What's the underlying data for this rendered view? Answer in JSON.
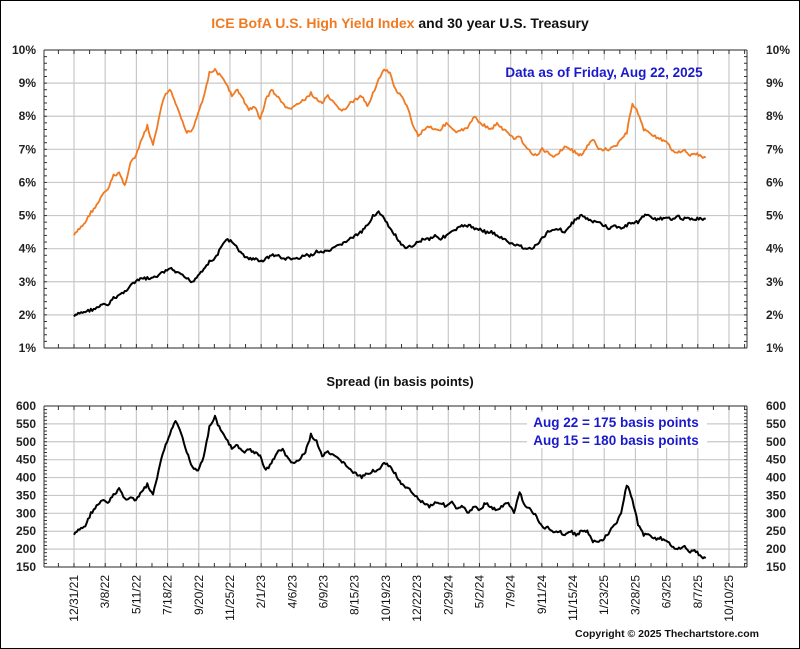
{
  "chart_data": [
    {
      "type": "line",
      "title_parts": [
        {
          "text": "ICE BofA U.S. High Yield Index",
          "color": "#f07a22"
        },
        {
          "text": " and 30 year U.S. Treasury",
          "color": "#111111"
        }
      ],
      "annotation": "Data as of Friday, Aug 22, 2025",
      "annotation_color": "#1a1acc",
      "ylabel": "",
      "ylim": [
        1,
        10
      ],
      "y_ticks": [
        "1%",
        "2%",
        "3%",
        "4%",
        "5%",
        "6%",
        "7%",
        "8%",
        "9%",
        "10%"
      ],
      "y_axis": "both",
      "grid": true,
      "series": [
        {
          "name": "ICE BofA U.S. High Yield Index",
          "color": "#f07a22",
          "x_start": "2021-12-31",
          "step_days": 14,
          "values": [
            4.4,
            4.6,
            4.8,
            5.1,
            5.3,
            5.6,
            5.8,
            6.2,
            6.3,
            5.9,
            6.6,
            6.8,
            7.3,
            7.7,
            7.1,
            7.9,
            8.6,
            8.8,
            8.4,
            7.9,
            7.5,
            7.6,
            8.1,
            8.6,
            9.3,
            9.4,
            9.2,
            9.0,
            8.6,
            8.8,
            8.5,
            8.2,
            8.3,
            7.9,
            8.5,
            8.8,
            8.6,
            8.4,
            8.2,
            8.3,
            8.4,
            8.5,
            8.7,
            8.5,
            8.4,
            8.6,
            8.4,
            8.2,
            8.2,
            8.4,
            8.5,
            8.6,
            8.3,
            8.7,
            9.1,
            9.4,
            9.3,
            8.8,
            8.6,
            8.3,
            7.8,
            7.4,
            7.6,
            7.7,
            7.6,
            7.6,
            7.8,
            7.6,
            7.5,
            7.6,
            7.7,
            8.0,
            7.8,
            7.7,
            7.6,
            7.8,
            7.6,
            7.5,
            7.3,
            7.4,
            7.1,
            6.9,
            6.8,
            7.0,
            6.9,
            6.8,
            6.9,
            7.1,
            7.0,
            6.9,
            6.8,
            7.1,
            7.3,
            7.0,
            7.0,
            7.0,
            7.1,
            7.3,
            7.5,
            8.4,
            8.1,
            7.6,
            7.5,
            7.4,
            7.3,
            7.2,
            7.0,
            6.9,
            7.0,
            6.8,
            6.9,
            6.8,
            6.75
          ],
          "last_value_date": "2025-08-22"
        },
        {
          "name": "30 year U.S. Treasury",
          "color": "#000000",
          "x_start": "2021-12-31",
          "step_days": 14,
          "values": [
            1.95,
            2.05,
            2.1,
            2.15,
            2.2,
            2.3,
            2.3,
            2.5,
            2.6,
            2.7,
            2.9,
            3.0,
            3.1,
            3.1,
            3.1,
            3.2,
            3.3,
            3.4,
            3.3,
            3.2,
            3.1,
            3.0,
            3.2,
            3.4,
            3.6,
            3.7,
            4.0,
            4.3,
            4.2,
            4.0,
            3.8,
            3.7,
            3.7,
            3.6,
            3.7,
            3.8,
            3.8,
            3.7,
            3.7,
            3.7,
            3.7,
            3.8,
            3.8,
            3.9,
            3.9,
            3.9,
            4.0,
            4.1,
            4.2,
            4.3,
            4.4,
            4.5,
            4.7,
            5.0,
            5.1,
            4.9,
            4.6,
            4.4,
            4.1,
            4.0,
            4.1,
            4.2,
            4.3,
            4.3,
            4.4,
            4.3,
            4.4,
            4.5,
            4.6,
            4.7,
            4.7,
            4.6,
            4.6,
            4.5,
            4.5,
            4.4,
            4.3,
            4.2,
            4.1,
            4.1,
            4.0,
            4.0,
            4.1,
            4.3,
            4.5,
            4.6,
            4.6,
            4.5,
            4.7,
            4.9,
            5.0,
            4.9,
            4.8,
            4.8,
            4.7,
            4.6,
            4.7,
            4.6,
            4.7,
            4.8,
            4.8,
            5.0,
            5.0,
            4.9,
            4.9,
            4.9,
            4.9,
            5.0,
            4.9,
            4.9,
            4.9,
            4.9,
            4.9
          ],
          "last_value_date": "2025-08-22"
        }
      ]
    },
    {
      "type": "line",
      "title": "Spread (in basis points)",
      "annotations": [
        "Aug 22 = 175 basis points",
        "Aug 15 = 180 basis points"
      ],
      "annotation_color": "#1a1acc",
      "ylim": [
        150,
        600
      ],
      "y_ticks": [
        "150",
        "200",
        "250",
        "300",
        "350",
        "400",
        "450",
        "500",
        "550",
        "600"
      ],
      "y_axis": "both",
      "grid": true,
      "x_tick_labels": [
        "12/31/21",
        "3/8/22",
        "5/11/22",
        "7/18/22",
        "9/20/22",
        "11/25/22",
        "2/1/23",
        "4/6/23",
        "6/9/23",
        "8/15/23",
        "10/19/23",
        "12/22/23",
        "2/29/24",
        "5/2/24",
        "7/9/24",
        "9/11/24",
        "11/15/24",
        "1/23/25",
        "3/28/25",
        "6/3/25",
        "8/7/25",
        "10/10/25"
      ],
      "x_range": [
        "2021-12-31",
        "2025-10-10"
      ],
      "series": [
        {
          "name": "Spread",
          "color": "#000000",
          "x_start": "2021-12-31",
          "step_days": 14,
          "values": [
            240,
            255,
            265,
            300,
            320,
            335,
            330,
            350,
            370,
            340,
            345,
            335,
            360,
            380,
            350,
            420,
            480,
            520,
            560,
            520,
            470,
            430,
            420,
            460,
            540,
            570,
            530,
            510,
            480,
            490,
            470,
            480,
            470,
            460,
            420,
            440,
            470,
            480,
            450,
            440,
            450,
            470,
            520,
            500,
            460,
            470,
            460,
            450,
            440,
            420,
            410,
            400,
            410,
            420,
            420,
            440,
            430,
            410,
            380,
            370,
            360,
            340,
            330,
            320,
            330,
            330,
            320,
            330,
            310,
            320,
            300,
            320,
            310,
            330,
            315,
            310,
            320,
            330,
            300,
            360,
            320,
            310,
            290,
            260,
            260,
            250,
            250,
            240,
            250,
            240,
            250,
            250,
            220,
            220,
            230,
            250,
            270,
            300,
            380,
            340,
            270,
            240,
            240,
            230,
            230,
            220,
            210,
            200,
            210,
            190,
            200,
            180,
            175
          ],
          "last_value_date": "2025-08-22"
        }
      ]
    }
  ],
  "footer": {
    "copyright": "Copyright © 2025 Thechartstore.com"
  }
}
